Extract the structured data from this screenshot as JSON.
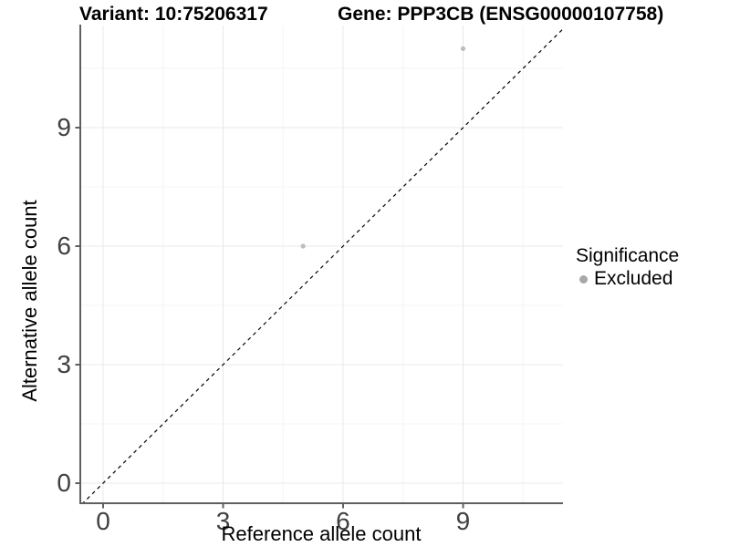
{
  "chart_data": {
    "type": "scatter",
    "title_left": "Variant: 10:75206317",
    "title_right": "Gene: PPP3CB (ENSG00000107758)",
    "xlabel": "Reference allele count",
    "ylabel": "Alternative allele count",
    "x_ticks": [
      0,
      3,
      6,
      9
    ],
    "y_ticks": [
      0,
      3,
      6,
      9
    ],
    "x_minor": [
      1.5,
      4.5,
      7.5,
      10.5
    ],
    "y_minor": [
      1.5,
      4.5,
      7.5,
      10.5
    ],
    "xlim": [
      -0.57,
      11.5
    ],
    "ylim": [
      -0.51,
      11.59
    ],
    "grid": true,
    "points": [
      {
        "x": 5,
        "y": 6,
        "series": "Excluded"
      },
      {
        "x": 9,
        "y": 11,
        "series": "Excluded"
      }
    ],
    "reference_line": {
      "type": "abline",
      "slope": 1,
      "intercept": 0,
      "style": "dashed"
    },
    "legend": {
      "title": "Significance",
      "position": "right",
      "items": [
        {
          "label": "Excluded",
          "color": "#a8a8a8",
          "marker": "circle"
        }
      ]
    },
    "colors": {
      "point": "#bdbdbd",
      "axis": "#5f5f5f",
      "grid_major": "#e8e8e8",
      "grid_minor": "#f4f4f4",
      "tick_label": "#404040",
      "reference_line": "#000000",
      "background": "#ffffff"
    }
  }
}
